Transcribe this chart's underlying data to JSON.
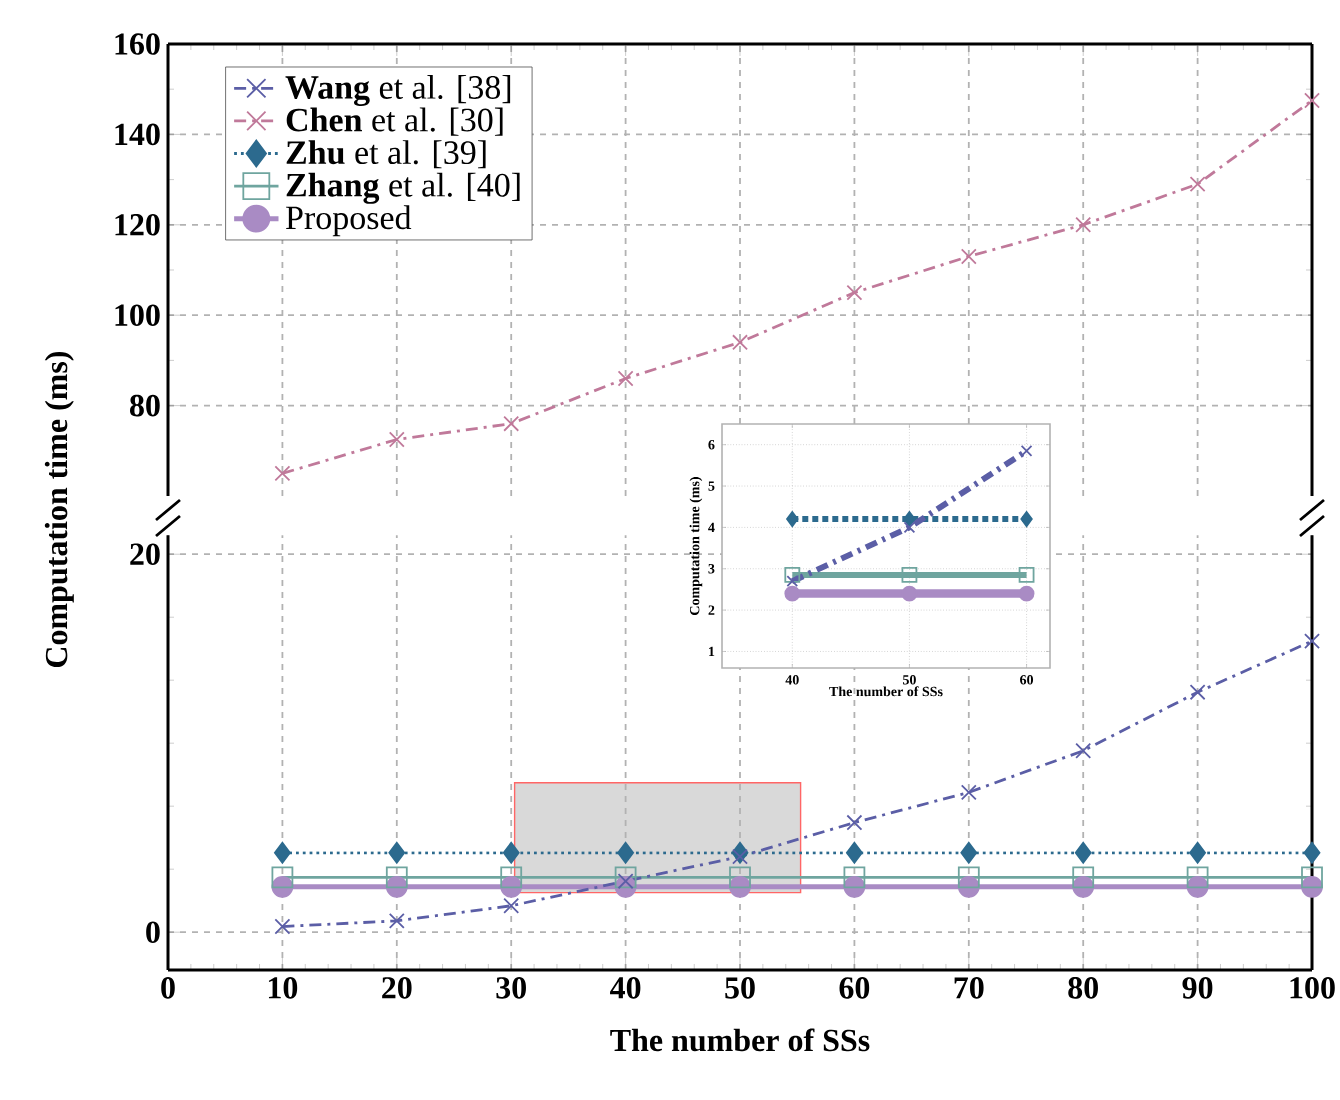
{
  "chart_data": [
    {
      "type": "line",
      "ylabel": "Computation time (ms)",
      "x": [
        10,
        20,
        30,
        40,
        50,
        60,
        70,
        80,
        90,
        100
      ],
      "xlim": [
        0,
        100
      ],
      "xticks": [
        0,
        10,
        20,
        30,
        40,
        50,
        60,
        70,
        80,
        90,
        100
      ],
      "ylim": [
        60,
        160
      ],
      "yticks": [
        80,
        100,
        120,
        140,
        160
      ],
      "tick_labels": "y",
      "grid": true,
      "legend": "top left",
      "series": [
        {
          "name": "**Wang** et al. [38]",
          "color": "#5b5ea6",
          "marker": "cross",
          "line_style": "dashed",
          "values": [
            null,
            null,
            null,
            null,
            null,
            null,
            null,
            null,
            null,
            null
          ]
        },
        {
          "name": "**Chen** et al. [30]",
          "color": "#c0799a",
          "marker": "cross",
          "line_style": "dashed",
          "values": [
            65,
            72.5,
            76,
            86,
            94,
            105,
            113,
            120,
            129,
            147.5
          ]
        },
        {
          "name": "**Zhu** et al. [39]",
          "color": "#2c6a8e",
          "marker": "diamond",
          "line_style": "dotted",
          "values": [
            null,
            null,
            null,
            null,
            null,
            null,
            null,
            null,
            null,
            null
          ]
        },
        {
          "name": "**Zhang** et al. [40]",
          "color": "#6fa59f",
          "marker": "square",
          "line_style": "solid",
          "values": [
            null,
            null,
            null,
            null,
            null,
            null,
            null,
            null,
            null,
            null
          ]
        },
        {
          "name": "Proposed",
          "color": "#a98bc4",
          "marker": "circle",
          "line_style": "solid",
          "values": [
            null,
            null,
            null,
            null,
            null,
            null,
            null,
            null,
            null,
            null
          ]
        }
      ]
    },
    {
      "type": "line",
      "xlabel": "The number of SSs",
      "x": [
        10,
        20,
        30,
        40,
        50,
        60,
        70,
        80,
        90,
        100
      ],
      "xlim": [
        0,
        100
      ],
      "xticks": [
        0,
        10,
        20,
        30,
        40,
        50,
        60,
        70,
        80,
        90,
        100
      ],
      "ylim": [
        -2,
        21
      ],
      "yticks": [
        0,
        20
      ],
      "grid": true,
      "series": [
        {
          "color": "#5b5ea6",
          "marker": "cross",
          "line_style": "dashed",
          "values": [
            0.3,
            0.6,
            1.4,
            2.7,
            4.0,
            5.8,
            7.4,
            9.6,
            12.7,
            15.4
          ]
        },
        {
          "color": "#2c6a8e",
          "marker": "diamond",
          "line_style": "dotted",
          "values": [
            4.2,
            4.2,
            4.2,
            4.2,
            4.2,
            4.2,
            4.2,
            4.2,
            4.2,
            4.2
          ]
        },
        {
          "color": "#6fa59f",
          "marker": "square",
          "line_style": "solid",
          "values": [
            2.9,
            2.9,
            2.9,
            2.9,
            2.9,
            2.9,
            2.9,
            2.9,
            2.9,
            2.9
          ]
        },
        {
          "color": "#a98bc4",
          "marker": "circle",
          "line_style": "solid",
          "values": [
            2.4,
            2.4,
            2.4,
            2.4,
            2.4,
            2.4,
            2.4,
            2.4,
            2.4,
            2.4
          ]
        }
      ]
    },
    {
      "type": "line",
      "xlabel": "The number of SSs",
      "ylabel": "Computation time (ms)",
      "x": [
        40,
        50,
        60
      ],
      "xlim": [
        34,
        62
      ],
      "xticks": [
        40,
        50,
        60
      ],
      "ylim": [
        0.6,
        6.5
      ],
      "yticks": [
        1,
        2,
        3,
        4,
        5,
        6
      ],
      "grid": true,
      "series": [
        {
          "color": "#5b5ea6",
          "marker": "cross",
          "line_style": "dashed",
          "values": [
            2.7,
            4.0,
            5.85
          ]
        },
        {
          "color": "#2c6a8e",
          "marker": "diamond",
          "line_style": "dotted",
          "values": [
            4.2,
            4.2,
            4.2
          ]
        },
        {
          "color": "#6fa59f",
          "marker": "square",
          "line_style": "solid",
          "values": [
            2.85,
            2.85,
            2.85
          ]
        },
        {
          "color": "#a98bc4",
          "marker": "circle",
          "line_style": "solid",
          "values": [
            2.4,
            2.4,
            2.4
          ]
        }
      ]
    }
  ]
}
